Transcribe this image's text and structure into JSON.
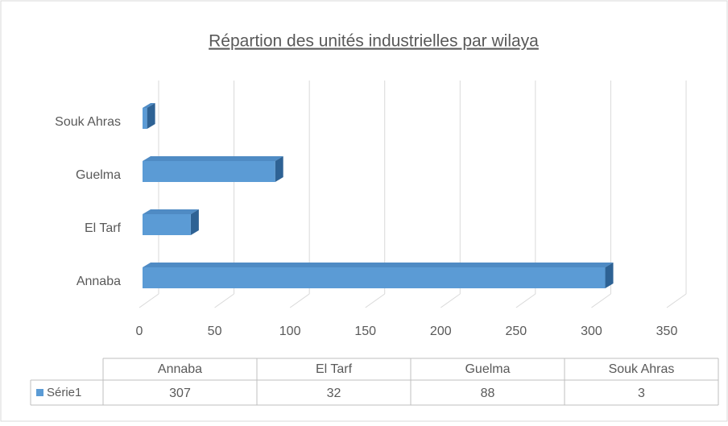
{
  "chart_data": {
    "type": "bar",
    "orientation": "horizontal",
    "title": "Répartion des unités industrielles par wilaya",
    "categories": [
      "Annaba",
      "El Tarf",
      "Guelma",
      "Souk Ahras"
    ],
    "series": [
      {
        "name": "Série1",
        "color": "#5b9bd5",
        "values": [
          307,
          32,
          88,
          3
        ]
      }
    ],
    "xlim": [
      0,
      350
    ],
    "xticks": [
      0,
      50,
      100,
      150,
      200,
      250,
      300,
      350
    ],
    "grid": true,
    "data_table": true
  }
}
